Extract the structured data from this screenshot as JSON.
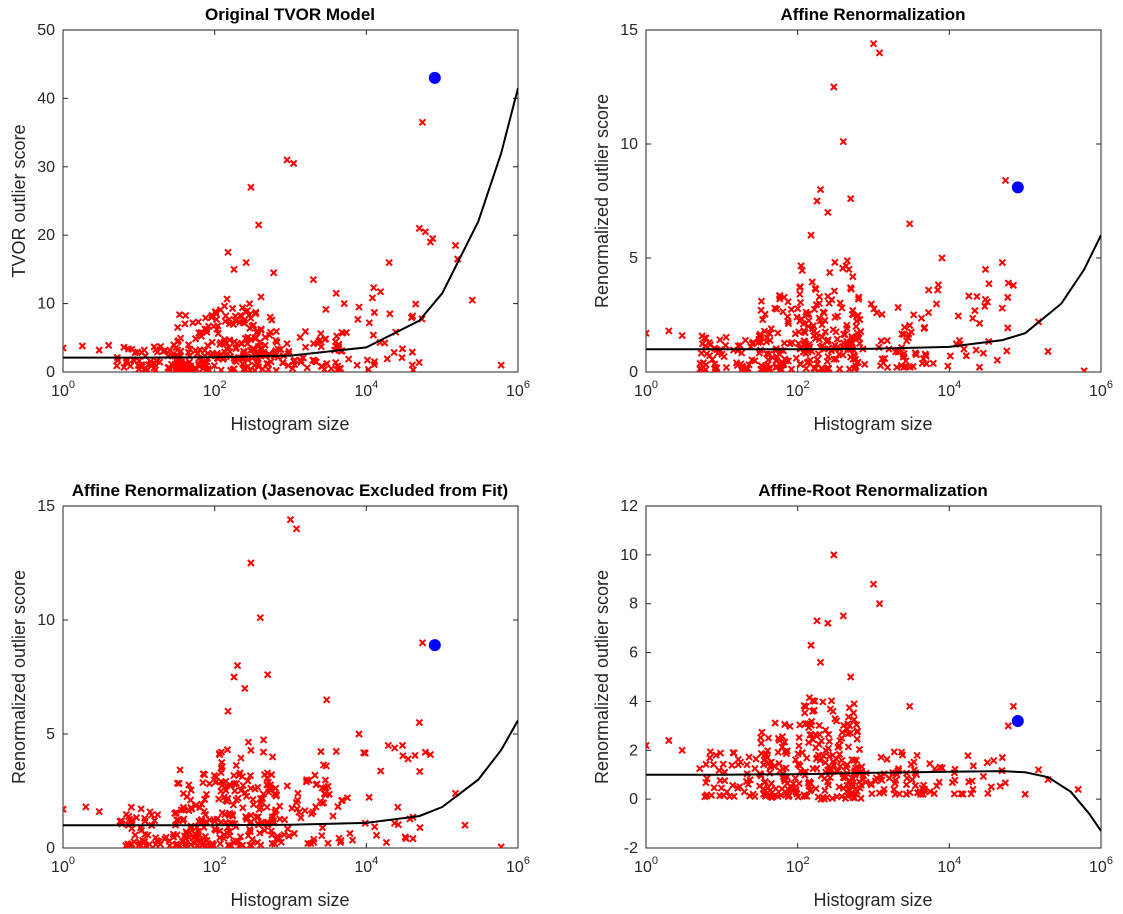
{
  "figure": {
    "colors": {
      "outlier_marker": "#ff0000",
      "highlight_point": "#0000ff",
      "fit_curve": "#000000"
    }
  },
  "chart_data": [
    {
      "type": "scatter",
      "title": "Original TVOR Model",
      "xlabel": "Histogram size",
      "ylabel": "TVOR outlier score",
      "xscale": "log",
      "xlim": [
        1,
        1000000
      ],
      "ylim": [
        0,
        50
      ],
      "xticks": [
        {
          "base": "10",
          "exp": "0"
        },
        {
          "base": "10",
          "exp": "2"
        },
        {
          "base": "10",
          "exp": "4"
        },
        {
          "base": "10",
          "exp": "6"
        }
      ],
      "yticks": [
        "0",
        "10",
        "20",
        "30",
        "40",
        "50"
      ],
      "highlight": {
        "x": 80000,
        "y": 43
      },
      "fit_curve": [
        [
          1,
          2.1
        ],
        [
          10,
          2.1
        ],
        [
          100,
          2.15
        ],
        [
          1000,
          2.4
        ],
        [
          10000,
          3.6
        ],
        [
          50000,
          7.5
        ],
        [
          100000,
          11.5
        ],
        [
          300000,
          22
        ],
        [
          600000,
          32
        ],
        [
          1000000,
          41.5
        ]
      ],
      "scatter": {
        "cloud": [
          {
            "x": [
              5,
              80
            ],
            "y": [
              0.3,
              4.0
            ],
            "count": 80
          },
          {
            "x": [
              30,
              700
            ],
            "y": [
              0.2,
              8.5
            ],
            "count": 140
          },
          {
            "x": [
              80,
              500
            ],
            "y": [
              2.0,
              11.0
            ],
            "count": 60
          },
          {
            "x": [
              500,
              5000
            ],
            "y": [
              0.3,
              6.0
            ],
            "count": 50
          },
          {
            "x": [
              2000,
              60000
            ],
            "y": [
              0.3,
              13.0
            ],
            "count": 40
          }
        ],
        "points": [
          [
            1,
            3.5
          ],
          [
            1.8,
            3.8
          ],
          [
            3,
            3.2
          ],
          [
            4,
            3.9
          ],
          [
            150,
            17.5
          ],
          [
            180,
            15.0
          ],
          [
            260,
            16.0
          ],
          [
            300,
            27.0
          ],
          [
            380,
            21.5
          ],
          [
            600,
            14.5
          ],
          [
            900,
            31.0
          ],
          [
            1100,
            30.5
          ],
          [
            2000,
            13.5
          ],
          [
            4000,
            11.5
          ],
          [
            8000,
            9.5
          ],
          [
            20000,
            16.0
          ],
          [
            50000,
            21.0
          ],
          [
            55000,
            36.5
          ],
          [
            60000,
            20.5
          ],
          [
            70000,
            19.0
          ],
          [
            75000,
            19.5
          ],
          [
            150000,
            18.5
          ],
          [
            160000,
            16.5
          ],
          [
            250000,
            10.5
          ],
          [
            600000,
            1.0
          ]
        ]
      }
    },
    {
      "type": "scatter",
      "title": "Affine Renormalization",
      "xlabel": "Histogram size",
      "ylabel": "Renormalized outlier score",
      "xscale": "log",
      "xlim": [
        1,
        1000000
      ],
      "ylim": [
        0,
        15
      ],
      "xticks": [
        {
          "base": "10",
          "exp": "0"
        },
        {
          "base": "10",
          "exp": "2"
        },
        {
          "base": "10",
          "exp": "4"
        },
        {
          "base": "10",
          "exp": "6"
        }
      ],
      "yticks": [
        "0",
        "5",
        "10",
        "15"
      ],
      "highlight": {
        "x": 80000,
        "y": 8.1
      },
      "fit_curve": [
        [
          1,
          1.0
        ],
        [
          100,
          1.0
        ],
        [
          1000,
          1.02
        ],
        [
          10000,
          1.1
        ],
        [
          50000,
          1.4
        ],
        [
          100000,
          1.7
        ],
        [
          300000,
          3.0
        ],
        [
          600000,
          4.5
        ],
        [
          1000000,
          6.0
        ]
      ],
      "scatter": {
        "cloud": [
          {
            "x": [
              5,
              80
            ],
            "y": [
              0.1,
              1.8
            ],
            "count": 80
          },
          {
            "x": [
              30,
              700
            ],
            "y": [
              0.1,
              3.5
            ],
            "count": 140
          },
          {
            "x": [
              100,
              600
            ],
            "y": [
              1.0,
              5.0
            ],
            "count": 60
          },
          {
            "x": [
              500,
              5000
            ],
            "y": [
              0.2,
              3.0
            ],
            "count": 50
          },
          {
            "x": [
              2000,
              60000
            ],
            "y": [
              0.2,
              4.5
            ],
            "count": 40
          }
        ],
        "points": [
          [
            1,
            1.7
          ],
          [
            2,
            1.8
          ],
          [
            3,
            1.6
          ],
          [
            150,
            6.0
          ],
          [
            180,
            7.5
          ],
          [
            200,
            8.0
          ],
          [
            250,
            7.0
          ],
          [
            300,
            12.5
          ],
          [
            400,
            10.1
          ],
          [
            500,
            7.6
          ],
          [
            1000,
            14.4
          ],
          [
            1200,
            14.0
          ],
          [
            3000,
            6.5
          ],
          [
            8000,
            5.0
          ],
          [
            30000,
            4.5
          ],
          [
            50000,
            4.8
          ],
          [
            55000,
            8.4
          ],
          [
            60000,
            3.9
          ],
          [
            70000,
            3.8
          ],
          [
            150000,
            2.2
          ],
          [
            200000,
            0.9
          ],
          [
            600000,
            0.05
          ]
        ]
      }
    },
    {
      "type": "scatter",
      "title": "Affine Renormalization (Jasenovac Excluded from Fit)",
      "xlabel": "Histogram size",
      "ylabel": "Renormalized outlier score",
      "xscale": "log",
      "xlim": [
        1,
        1000000
      ],
      "ylim": [
        0,
        15
      ],
      "xticks": [
        {
          "base": "10",
          "exp": "0"
        },
        {
          "base": "10",
          "exp": "2"
        },
        {
          "base": "10",
          "exp": "4"
        },
        {
          "base": "10",
          "exp": "6"
        }
      ],
      "yticks": [
        "0",
        "5",
        "10",
        "15"
      ],
      "highlight": {
        "x": 80000,
        "y": 8.9
      },
      "fit_curve": [
        [
          1,
          1.0
        ],
        [
          100,
          1.0
        ],
        [
          1000,
          1.02
        ],
        [
          10000,
          1.1
        ],
        [
          50000,
          1.4
        ],
        [
          100000,
          1.8
        ],
        [
          300000,
          3.0
        ],
        [
          600000,
          4.3
        ],
        [
          1000000,
          5.6
        ]
      ],
      "scatter": {
        "cloud": [
          {
            "x": [
              5,
              80
            ],
            "y": [
              0.1,
              1.8
            ],
            "count": 80
          },
          {
            "x": [
              30,
              700
            ],
            "y": [
              0.1,
              3.5
            ],
            "count": 140
          },
          {
            "x": [
              100,
              600
            ],
            "y": [
              1.0,
              5.0
            ],
            "count": 60
          },
          {
            "x": [
              500,
              5000
            ],
            "y": [
              0.2,
              3.0
            ],
            "count": 50
          },
          {
            "x": [
              2000,
              60000
            ],
            "y": [
              0.2,
              4.5
            ],
            "count": 40
          }
        ],
        "points": [
          [
            1,
            1.7
          ],
          [
            2,
            1.8
          ],
          [
            3,
            1.6
          ],
          [
            150,
            6.0
          ],
          [
            180,
            7.5
          ],
          [
            200,
            8.0
          ],
          [
            250,
            7.0
          ],
          [
            300,
            12.5
          ],
          [
            400,
            10.1
          ],
          [
            500,
            7.6
          ],
          [
            1000,
            14.4
          ],
          [
            1200,
            14.0
          ],
          [
            3000,
            6.5
          ],
          [
            8000,
            5.0
          ],
          [
            30000,
            4.5
          ],
          [
            50000,
            5.5
          ],
          [
            55000,
            9.0
          ],
          [
            60000,
            4.2
          ],
          [
            70000,
            4.1
          ],
          [
            150000,
            2.4
          ],
          [
            200000,
            1.0
          ],
          [
            600000,
            0.05
          ]
        ]
      }
    },
    {
      "type": "scatter",
      "title": "Affine-Root Renormalization",
      "xlabel": "Histogram size",
      "ylabel": "Renormalized outlier score",
      "xscale": "log",
      "xlim": [
        1,
        1000000
      ],
      "ylim": [
        -2,
        12
      ],
      "xticks": [
        {
          "base": "10",
          "exp": "0"
        },
        {
          "base": "10",
          "exp": "2"
        },
        {
          "base": "10",
          "exp": "4"
        },
        {
          "base": "10",
          "exp": "6"
        }
      ],
      "yticks": [
        "-2",
        "0",
        "2",
        "4",
        "6",
        "8",
        "10",
        "12"
      ],
      "highlight": {
        "x": 80000,
        "y": 3.2
      },
      "fit_curve": [
        [
          1,
          1.0
        ],
        [
          10,
          1.0
        ],
        [
          100,
          1.02
        ],
        [
          1000,
          1.08
        ],
        [
          10000,
          1.12
        ],
        [
          50000,
          1.15
        ],
        [
          100000,
          1.1
        ],
        [
          200000,
          0.9
        ],
        [
          400000,
          0.3
        ],
        [
          700000,
          -0.6
        ],
        [
          1000000,
          -1.3
        ]
      ],
      "scatter": {
        "cloud": [
          {
            "x": [
              5,
              80
            ],
            "y": [
              0.1,
              2.0
            ],
            "count": 80
          },
          {
            "x": [
              30,
              700
            ],
            "y": [
              0.0,
              3.2
            ],
            "count": 140
          },
          {
            "x": [
              100,
              600
            ],
            "y": [
              1.0,
              4.2
            ],
            "count": 60
          },
          {
            "x": [
              500,
              5000
            ],
            "y": [
              0.2,
              2.0
            ],
            "count": 50
          },
          {
            "x": [
              2000,
              60000
            ],
            "y": [
              0.2,
              1.8
            ],
            "count": 40
          }
        ],
        "points": [
          [
            1,
            2.2
          ],
          [
            2,
            2.4
          ],
          [
            3,
            2.0
          ],
          [
            150,
            6.3
          ],
          [
            180,
            7.3
          ],
          [
            200,
            5.6
          ],
          [
            250,
            7.2
          ],
          [
            300,
            10.0
          ],
          [
            400,
            7.5
          ],
          [
            500,
            5.0
          ],
          [
            1000,
            8.8
          ],
          [
            1200,
            8.0
          ],
          [
            3000,
            3.8
          ],
          [
            50000,
            1.7
          ],
          [
            60000,
            3.0
          ],
          [
            70000,
            3.8
          ],
          [
            100000,
            0.2
          ],
          [
            150000,
            1.2
          ],
          [
            200000,
            0.8
          ],
          [
            500000,
            0.4
          ]
        ]
      }
    }
  ]
}
